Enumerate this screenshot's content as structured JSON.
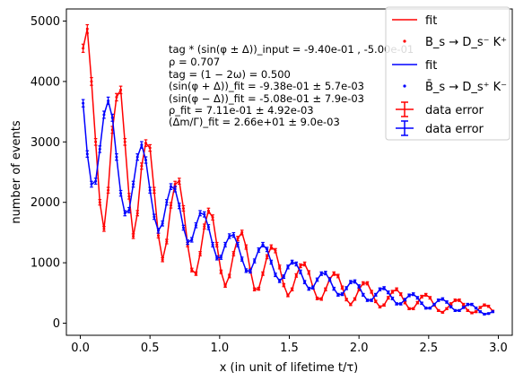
{
  "chart_data": {
    "type": "scatter",
    "xlabel": "x (in unit of lifetime t/τ)",
    "ylabel": "number of events",
    "xlim": [
      -0.1,
      3.1
    ],
    "ylim": [
      -200,
      5200
    ],
    "x_ticks": [
      "0.0",
      "0.5",
      "1.0",
      "1.5",
      "2.0",
      "2.5",
      "3.0"
    ],
    "y_ticks": [
      "0",
      "1000",
      "2000",
      "3000",
      "4000",
      "5000"
    ],
    "grid": false,
    "legend_position": "top-right",
    "legend": [
      "fit",
      "B_s → D_s⁻ K⁺",
      "fit",
      "B̄_s → D_s⁺ K⁻",
      "data error",
      "data error"
    ],
    "colors": {
      "series_a": "#ff0000",
      "series_b": "#0000ff",
      "axis": "#000000"
    },
    "annotations": [
      "tag * (sin(φ ± Δ))_input = -9.40e-01 , -5.00e-01",
      "ρ = 0.707",
      "tag = (1 − 2ω) = 0.500",
      "(sin(φ + Δ))_fit = -9.38e-01 ± 5.7e-03",
      "(sin(φ − Δ))_fit = -5.08e-01 ± 7.9e-03",
      "ρ_fit = 7.11e-01 ± 4.92e-03",
      "(Δm/Γ)_fit = 2.66e+01 ± 9.0e-03"
    ],
    "series": [
      {
        "name": "B_s → D_s⁻ K⁺",
        "color": "#ff0000",
        "x": [
          0.02,
          0.05,
          0.08,
          0.11,
          0.14,
          0.17,
          0.2,
          0.23,
          0.26,
          0.29,
          0.32,
          0.35,
          0.38,
          0.41,
          0.44,
          0.47,
          0.5,
          0.53,
          0.56,
          0.59,
          0.62,
          0.65,
          0.68,
          0.71,
          0.74,
          0.77,
          0.8,
          0.83,
          0.86,
          0.89,
          0.92,
          0.95,
          0.98,
          1.01,
          1.04,
          1.07,
          1.1,
          1.13,
          1.16,
          1.19,
          1.22,
          1.25,
          1.28,
          1.31,
          1.34,
          1.37,
          1.4,
          1.43,
          1.46,
          1.49,
          1.52,
          1.55,
          1.58,
          1.61,
          1.64,
          1.67,
          1.7,
          1.73,
          1.76,
          1.79,
          1.82,
          1.85,
          1.88,
          1.91,
          1.94,
          1.97,
          2.0,
          2.03,
          2.06,
          2.09,
          2.12,
          2.15,
          2.18,
          2.21,
          2.24,
          2.27,
          2.3,
          2.33,
          2.36,
          2.39,
          2.42,
          2.45,
          2.48,
          2.51,
          2.54,
          2.57,
          2.6,
          2.63,
          2.66,
          2.69,
          2.72,
          2.75,
          2.78,
          2.81,
          2.84,
          2.87,
          2.9,
          2.93,
          2.96
        ],
        "y": [
          4550,
          4870,
          4000,
          3000,
          2000,
          1560,
          2200,
          3200,
          3740,
          3860,
          3000,
          2100,
          1440,
          1820,
          2600,
          2980,
          2900,
          2200,
          1450,
          1050,
          1350,
          1950,
          2300,
          2350,
          1900,
          1300,
          880,
          820,
          1150,
          1600,
          1860,
          1750,
          1300,
          850,
          620,
          780,
          1150,
          1400,
          1500,
          1260,
          880,
          560,
          570,
          820,
          1100,
          1260,
          1200,
          930,
          630,
          460,
          560,
          790,
          950,
          980,
          840,
          590,
          410,
          400,
          560,
          730,
          820,
          780,
          590,
          390,
          310,
          400,
          560,
          660,
          660,
          520,
          360,
          270,
          300,
          420,
          520,
          560,
          480,
          340,
          240,
          240,
          340,
          440,
          470,
          420,
          300,
          210,
          180,
          240,
          320,
          380,
          380,
          310,
          210,
          170,
          190,
          260,
          300,
          280,
          200
        ]
      },
      {
        "name": "B̄_s → D_s⁺ K⁻",
        "color": "#0000ff",
        "x": [
          0.02,
          0.05,
          0.08,
          0.11,
          0.14,
          0.17,
          0.2,
          0.23,
          0.26,
          0.29,
          0.32,
          0.35,
          0.38,
          0.41,
          0.44,
          0.47,
          0.5,
          0.53,
          0.56,
          0.59,
          0.62,
          0.65,
          0.68,
          0.71,
          0.74,
          0.77,
          0.8,
          0.83,
          0.86,
          0.89,
          0.92,
          0.95,
          0.98,
          1.01,
          1.04,
          1.07,
          1.1,
          1.13,
          1.16,
          1.19,
          1.22,
          1.25,
          1.28,
          1.31,
          1.34,
          1.37,
          1.4,
          1.43,
          1.46,
          1.49,
          1.52,
          1.55,
          1.58,
          1.61,
          1.64,
          1.67,
          1.7,
          1.73,
          1.76,
          1.79,
          1.82,
          1.85,
          1.88,
          1.91,
          1.94,
          1.97,
          2.0,
          2.03,
          2.06,
          2.09,
          2.12,
          2.15,
          2.18,
          2.21,
          2.24,
          2.27,
          2.3,
          2.33,
          2.36,
          2.39,
          2.42,
          2.45,
          2.48,
          2.51,
          2.54,
          2.57,
          2.6,
          2.63,
          2.66,
          2.69,
          2.72,
          2.75,
          2.78,
          2.81,
          2.84,
          2.87,
          2.9,
          2.93,
          2.96
        ],
        "y": [
          3640,
          2800,
          2300,
          2350,
          2880,
          3450,
          3680,
          3400,
          2750,
          2150,
          1820,
          1870,
          2300,
          2750,
          2950,
          2700,
          2200,
          1760,
          1530,
          1650,
          2000,
          2260,
          2220,
          1940,
          1580,
          1340,
          1380,
          1620,
          1820,
          1800,
          1590,
          1300,
          1080,
          1090,
          1300,
          1440,
          1460,
          1300,
          1060,
          870,
          860,
          1030,
          1210,
          1300,
          1220,
          1010,
          800,
          700,
          770,
          930,
          1010,
          980,
          850,
          680,
          570,
          590,
          720,
          820,
          830,
          720,
          570,
          470,
          480,
          580,
          680,
          690,
          610,
          470,
          380,
          380,
          470,
          560,
          580,
          510,
          410,
          320,
          320,
          390,
          460,
          480,
          420,
          330,
          250,
          250,
          310,
          380,
          400,
          350,
          270,
          210,
          210,
          260,
          310,
          310,
          250,
          190,
          150,
          160,
          190
        ]
      }
    ]
  }
}
